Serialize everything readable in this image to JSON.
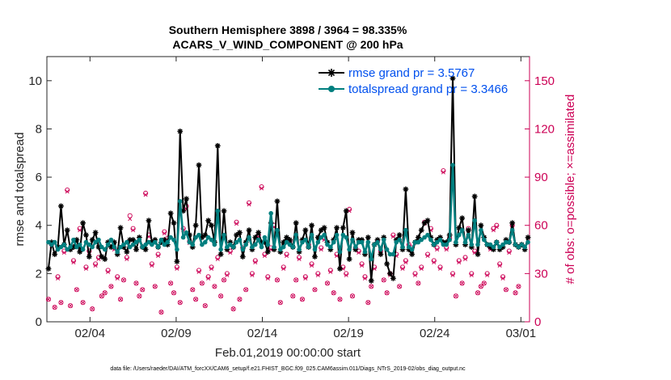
{
  "chart_data": {
    "type": "line",
    "title_line1": "Southern Hemisphere 3898 / 3964 = 98.335%",
    "title_line2": "ACARS_V_WIND_COMPONENT @ 200 hPa",
    "xlabel": "Feb.01,2019 00:00:00 start",
    "ylabel": "rmse and totalspread",
    "ylabel_right": "# of obs: o=possible; ×=assimilated",
    "xlim": [
      0,
      28
    ],
    "ylim": [
      0,
      11
    ],
    "ylim_right": [
      0,
      165
    ],
    "x_ticks": [
      {
        "value": 2.5,
        "label": "02/04"
      },
      {
        "value": 7.5,
        "label": "02/09"
      },
      {
        "value": 12.5,
        "label": "02/14"
      },
      {
        "value": 17.5,
        "label": "02/19"
      },
      {
        "value": 22.5,
        "label": "02/24"
      },
      {
        "value": 27.5,
        "label": "03/01"
      }
    ],
    "y_ticks": [
      "0",
      "2",
      "4",
      "6",
      "8",
      "10"
    ],
    "y_ticks_right": [
      "0",
      "30",
      "60",
      "90",
      "120",
      "150"
    ],
    "footnote": "data file: /Users/raeder/DAI/ATM_forcXX/CAM6_setup/f.e21.FHIST_BGC.f09_025.CAM6assim.011/Diags_NTrS_2019-02/obs_diag_output.nc",
    "series": [
      {
        "name": "rmse",
        "legend": "rmse grand pr = 3.5767",
        "color": "#000000",
        "values": [
          2.2,
          3.3,
          2.8,
          3.1,
          4.8,
          3.2,
          3.8,
          3.0,
          3.1,
          3.4,
          2.9,
          4.1,
          3.6,
          2.7,
          3.4,
          3.7,
          3.1,
          2.7,
          2.6,
          3.3,
          3.1,
          3.3,
          2.8,
          3.9,
          3.1,
          2.9,
          3.4,
          3.4,
          3.0,
          3.5,
          3.1,
          3.0,
          4.2,
          3.3,
          3.4,
          3.1,
          3.3,
          3.4,
          3.2,
          4.5,
          4.1,
          2.5,
          7.9,
          4.6,
          5.1,
          3.6,
          3.1,
          4.0,
          6.5,
          3.5,
          3.6,
          4.2,
          4.0,
          3.3,
          7.3,
          2.8,
          4.6,
          3.0,
          3.3,
          3.1,
          3.6,
          3.7,
          2.7,
          3.3,
          3.8,
          3.0,
          3.5,
          3.7,
          3.3,
          3.3,
          2.9,
          4.1,
          3.0,
          5.0,
          2.9,
          3.3,
          3.5,
          3.4,
          3.1,
          4.1,
          2.9,
          3.4,
          3.8,
          3.1,
          4.0,
          2.7,
          3.5,
          3.8,
          3.9,
          3.3,
          3.0,
          3.4,
          3.9,
          2.2,
          3.9,
          4.6,
          2.6,
          3.7,
          3.0,
          3.4,
          3.4,
          2.8,
          3.5,
          1.7,
          3.2,
          3.4,
          2.8,
          3.5,
          2.4,
          2.0,
          1.8,
          3.4,
          3.6,
          3.0,
          5.5,
          3.0,
          2.8,
          3.3,
          3.5,
          3.8,
          4.1,
          4.2,
          3.5,
          3.2,
          3.4,
          3.5,
          3.3,
          3.3,
          3.6,
          10.1,
          3.2,
          3.9,
          4.3,
          3.2,
          3.8,
          3.1,
          5.2,
          2.8,
          4.0,
          3.5,
          3.2,
          3.1,
          3.0,
          3.3,
          3.0,
          3.1,
          3.4,
          3.3,
          4.1,
          3.2,
          3.1,
          3.2,
          3.0,
          3.5
        ]
      },
      {
        "name": "totalspread",
        "legend": "totalspread grand pr = 3.3466",
        "color": "#007f7f",
        "values": [
          3.3,
          3.2,
          3.3,
          3.0,
          3.1,
          3.2,
          3.0,
          3.1,
          3.4,
          3.1,
          3.2,
          3.0,
          3.3,
          3.2,
          3.1,
          3.3,
          3.4,
          3.1,
          3.0,
          3.2,
          3.4,
          3.1,
          2.9,
          3.1,
          3.2,
          3.3,
          3.1,
          3.2,
          3.3,
          3.4,
          3.1,
          3.2,
          3.3,
          3.2,
          3.3,
          3.1,
          3.4,
          3.2,
          3.3,
          3.5,
          3.4,
          3.0,
          5.0,
          3.5,
          3.7,
          3.3,
          3.2,
          3.5,
          3.6,
          3.2,
          3.3,
          3.5,
          3.4,
          3.2,
          4.6,
          3.0,
          3.6,
          3.1,
          3.2,
          3.1,
          3.3,
          3.4,
          3.0,
          3.2,
          3.5,
          3.1,
          3.2,
          3.4,
          3.1,
          3.5,
          3.2,
          4.5,
          3.1,
          3.8,
          3.0,
          3.1,
          3.3,
          3.2,
          3.1,
          3.6,
          3.0,
          3.3,
          3.4,
          3.1,
          3.6,
          3.0,
          3.3,
          3.5,
          3.6,
          3.2,
          3.1,
          3.3,
          3.6,
          2.9,
          3.6,
          3.5,
          3.0,
          3.4,
          3.1,
          3.3,
          3.3,
          2.9,
          3.3,
          2.6,
          3.2,
          3.3,
          3.0,
          3.4,
          3.0,
          2.8,
          2.8,
          3.3,
          3.4,
          3.1,
          3.8,
          3.1,
          3.0,
          3.3,
          3.3,
          3.4,
          3.5,
          3.6,
          3.4,
          3.2,
          3.3,
          3.4,
          3.2,
          3.2,
          3.4,
          6.5,
          3.3,
          3.6,
          3.8,
          3.3,
          3.6,
          3.2,
          4.2,
          3.2,
          3.8,
          3.4,
          3.2,
          3.2,
          3.1,
          3.3,
          3.1,
          3.2,
          3.3,
          3.3,
          3.8,
          3.2,
          3.1,
          3.2,
          3.1,
          3.3
        ]
      },
      {
        "name": "obs_possible",
        "legend": "o=possible",
        "color": "#cc0055",
        "values": [
          14,
          48,
          9,
          28,
          12,
          44,
          82,
          10,
          38,
          20,
          58,
          12,
          34,
          44,
          8,
          36,
          40,
          16,
          18,
          32,
          22,
          46,
          28,
          14,
          26,
          40,
          66,
          58,
          24,
          16,
          20,
          80,
          54,
          36,
          22,
          42,
          6,
          56,
          52,
          24,
          18,
          34,
          12,
          58,
          72,
          50,
          20,
          14,
          32,
          24,
          10,
          28,
          34,
          22,
          40,
          16,
          26,
          30,
          44,
          8,
          62,
          14,
          46,
          20,
          74,
          30,
          38,
          54,
          84,
          42,
          28,
          46,
          60,
          26,
          12,
          34,
          42,
          50,
          16,
          26,
          40,
          14,
          28,
          48,
          36,
          20,
          30,
          46,
          52,
          24,
          32,
          18,
          42,
          14,
          34,
          30,
          70,
          16,
          46,
          44,
          36,
          28,
          12,
          22,
          34,
          50,
          44,
          26,
          18,
          30,
          54,
          42,
          22,
          34,
          38,
          48,
          46,
          30,
          24,
          34,
          62,
          42,
          58,
          38,
          46,
          34,
          94,
          46,
          52,
          30,
          16,
          38,
          24,
          40,
          58,
          30,
          44,
          18,
          22,
          24,
          30,
          46,
          58,
          60,
          36,
          28,
          20,
          44,
          60,
          18,
          22
        ]
      },
      {
        "name": "obs_assimilated",
        "legend": "×=assimilated",
        "color": "#cc0055",
        "values": [
          14,
          47,
          9,
          27,
          12,
          43,
          81,
          10,
          37,
          20,
          57,
          12,
          33,
          43,
          8,
          35,
          39,
          16,
          18,
          31,
          22,
          45,
          27,
          14,
          26,
          39,
          64,
          57,
          24,
          16,
          20,
          79,
          53,
          35,
          22,
          41,
          6,
          55,
          51,
          24,
          18,
          33,
          12,
          57,
          70,
          49,
          20,
          14,
          31,
          24,
          10,
          27,
          33,
          22,
          39,
          16,
          26,
          29,
          43,
          8,
          61,
          14,
          45,
          20,
          73,
          29,
          37,
          53,
          83,
          41,
          27,
          45,
          59,
          26,
          12,
          33,
          41,
          49,
          16,
          26,
          39,
          14,
          27,
          47,
          35,
          20,
          29,
          45,
          51,
          24,
          31,
          18,
          41,
          14,
          33,
          29,
          69,
          16,
          45,
          43,
          35,
          27,
          12,
          22,
          33,
          49,
          43,
          26,
          18,
          29,
          53,
          41,
          22,
          33,
          37,
          47,
          45,
          29,
          24,
          33,
          61,
          41,
          57,
          37,
          45,
          33,
          93,
          45,
          51,
          29,
          16,
          37,
          24,
          39,
          57,
          29,
          43,
          18,
          22,
          24,
          29,
          45,
          57,
          59,
          35,
          27,
          20,
          43,
          59,
          18,
          22
        ]
      }
    ]
  }
}
